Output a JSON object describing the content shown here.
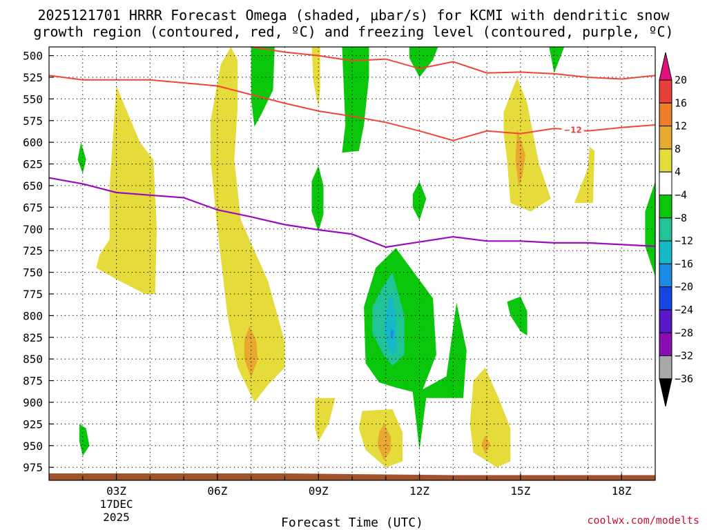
{
  "chart_data": {
    "type": "time-height",
    "title_line1": "2025121701 HRRR Forecast Omega (shaded, μbar/s) for KCMI with dendritic snow",
    "title_line2": "growth region (contoured, red, ºC) and freezing level (contoured, purple, ºC)",
    "xlabel": "Forecast Time (UTC)",
    "credit": "coolwx.com/modelts",
    "x_range": [
      1,
      19
    ],
    "y_range": [
      490,
      990
    ],
    "x_ticks": [
      {
        "h": 3,
        "label": "03Z",
        "sub1": "17DEC",
        "sub2": "2025"
      },
      {
        "h": 6,
        "label": "06Z"
      },
      {
        "h": 9,
        "label": "09Z"
      },
      {
        "h": 12,
        "label": "12Z"
      },
      {
        "h": 15,
        "label": "15Z"
      },
      {
        "h": 18,
        "label": "18Z"
      }
    ],
    "y_ticks": [
      500,
      525,
      550,
      575,
      600,
      625,
      650,
      675,
      700,
      725,
      750,
      775,
      800,
      825,
      850,
      875,
      900,
      925,
      950,
      975
    ],
    "colorbar": {
      "labels": [
        "20",
        "16",
        "12",
        "8",
        "4",
        "−4",
        "−8",
        "−12",
        "−16",
        "−20",
        "−24",
        "−28",
        "−32",
        "−36"
      ],
      "colors": [
        "#e8403a",
        "#ef7e2a",
        "#e7a930",
        "#e5db3b",
        "#ffffff",
        "#0bc70b",
        "#23c398",
        "#16b7c7",
        "#1c8be6",
        "#1646e1",
        "#5b18c8",
        "#8b0bb7",
        "#a8a8a8"
      ],
      "top_arrow": "#e3117f",
      "bottom_arrow": "#000000"
    },
    "shading_colors": {
      "yellow": "#e5db3b",
      "orange": "#e7a930",
      "green": "#0bc70b",
      "teal": "#23c398",
      "cyan": "#16b7c7",
      "blue": "#1c8be6"
    },
    "dgz_color": "#f04438",
    "freezing_color": "#9a0bc0",
    "ground_color": "#a0522d",
    "dgz_top": [
      [
        1,
        523
      ],
      [
        2,
        528
      ],
      [
        4,
        528
      ],
      [
        6,
        535
      ],
      [
        7,
        545
      ],
      [
        8,
        555
      ],
      [
        9,
        564
      ],
      [
        10,
        570
      ],
      [
        11,
        577
      ],
      [
        12,
        587
      ],
      [
        13,
        598
      ],
      [
        14,
        587
      ],
      [
        15,
        590
      ],
      [
        16,
        584
      ],
      [
        17,
        587
      ],
      [
        18,
        583
      ],
      [
        19,
        580
      ]
    ],
    "dgz_bottom": [
      [
        7,
        490
      ],
      [
        8,
        496
      ],
      [
        9,
        500
      ],
      [
        10,
        506
      ],
      [
        11,
        504
      ],
      [
        12,
        515
      ],
      [
        13,
        507
      ],
      [
        14,
        520
      ],
      [
        15,
        519
      ],
      [
        16,
        521
      ],
      [
        17,
        525
      ],
      [
        18,
        527
      ],
      [
        19,
        523
      ]
    ],
    "dgz_label": {
      "text": "−12",
      "x": 16.55,
      "p": 586
    },
    "freezing_line": [
      [
        1,
        641
      ],
      [
        2,
        648
      ],
      [
        3,
        658
      ],
      [
        4,
        661
      ],
      [
        5,
        664
      ],
      [
        6,
        678
      ],
      [
        7,
        686
      ],
      [
        8,
        695
      ],
      [
        9,
        701
      ],
      [
        10,
        706
      ],
      [
        11,
        721
      ],
      [
        12,
        715
      ],
      [
        13,
        709
      ],
      [
        14,
        714
      ],
      [
        15,
        714
      ],
      [
        16,
        716
      ],
      [
        17,
        716
      ],
      [
        18,
        718
      ],
      [
        19,
        720
      ]
    ],
    "omega_regions": [
      {
        "color": "yellow",
        "points": [
          [
            3.85,
            775
          ],
          [
            3.6,
            770
          ],
          [
            3.1,
            760
          ],
          [
            2.4,
            745
          ],
          [
            2.5,
            730
          ],
          [
            2.8,
            712
          ],
          [
            2.8,
            650
          ],
          [
            3,
            535
          ],
          [
            3.7,
            600
          ],
          [
            4.1,
            620
          ],
          [
            4.2,
            700
          ],
          [
            4.15,
            775
          ]
        ]
      },
      {
        "color": "yellow",
        "points": [
          [
            5.8,
            575
          ],
          [
            6.1,
            510
          ],
          [
            6.4,
            490
          ],
          [
            6.6,
            505
          ],
          [
            6.6,
            560
          ],
          [
            6.5,
            620
          ],
          [
            6.7,
            690
          ],
          [
            7.5,
            760
          ],
          [
            8,
            830
          ],
          [
            8,
            860
          ],
          [
            7.5,
            880
          ],
          [
            7.1,
            900
          ],
          [
            6.6,
            860
          ],
          [
            6.3,
            800
          ],
          [
            6,
            700
          ],
          [
            5.8,
            620
          ]
        ]
      },
      {
        "color": "orange",
        "points": [
          [
            6.95,
            812
          ],
          [
            7.15,
            828
          ],
          [
            7.2,
            850
          ],
          [
            7.0,
            872
          ],
          [
            6.8,
            850
          ],
          [
            6.8,
            828
          ]
        ]
      },
      {
        "color": "yellow",
        "points": [
          [
            8.8,
            490
          ],
          [
            9.05,
            490
          ],
          [
            9.05,
            540
          ],
          [
            9.0,
            560
          ],
          [
            8.85,
            530
          ]
        ]
      },
      {
        "color": "yellow",
        "points": [
          [
            8.9,
            895
          ],
          [
            9.5,
            895
          ],
          [
            9.3,
            925
          ],
          [
            9.0,
            945
          ],
          [
            8.9,
            930
          ]
        ]
      },
      {
        "color": "yellow",
        "points": [
          [
            10.3,
            910
          ],
          [
            11.2,
            908
          ],
          [
            11.5,
            935
          ],
          [
            11.5,
            968
          ],
          [
            11.0,
            975
          ],
          [
            10.4,
            955
          ],
          [
            10.2,
            930
          ]
        ]
      },
      {
        "color": "orange",
        "points": [
          [
            10.95,
            925
          ],
          [
            11.15,
            940
          ],
          [
            11.15,
            955
          ],
          [
            10.95,
            967
          ],
          [
            10.75,
            950
          ],
          [
            10.8,
            935
          ]
        ]
      },
      {
        "color": "yellow",
        "points": [
          [
            11.95,
            775
          ],
          [
            12.15,
            805
          ],
          [
            12.05,
            840
          ],
          [
            11.95,
            805
          ]
        ]
      },
      {
        "color": "yellow",
        "points": [
          [
            13.6,
            875
          ],
          [
            13.95,
            860
          ],
          [
            14.35,
            895
          ],
          [
            14.7,
            930
          ],
          [
            14.7,
            968
          ],
          [
            14.3,
            975
          ],
          [
            13.6,
            958
          ],
          [
            13.5,
            925
          ]
        ]
      },
      {
        "color": "orange",
        "points": [
          [
            13.95,
            938
          ],
          [
            14.1,
            948
          ],
          [
            13.95,
            960
          ],
          [
            13.85,
            948
          ]
        ]
      },
      {
        "color": "yellow",
        "points": [
          [
            14.5,
            565
          ],
          [
            14.9,
            525
          ],
          [
            15.2,
            555
          ],
          [
            15.55,
            625
          ],
          [
            15.9,
            665
          ],
          [
            15.3,
            680
          ],
          [
            14.7,
            670
          ],
          [
            14.6,
            620
          ],
          [
            14.5,
            590
          ]
        ]
      },
      {
        "color": "orange",
        "points": [
          [
            14.9,
            585
          ],
          [
            15.15,
            615
          ],
          [
            15.05,
            640
          ],
          [
            14.95,
            652
          ],
          [
            14.85,
            620
          ]
        ]
      },
      {
        "color": "yellow",
        "points": [
          [
            17.05,
            605
          ],
          [
            17.2,
            610
          ],
          [
            17.15,
            670
          ],
          [
            16.6,
            670
          ],
          [
            17.0,
            630
          ]
        ]
      },
      {
        "color": "green",
        "points": [
          [
            7.0,
            490
          ],
          [
            7.7,
            490
          ],
          [
            7.65,
            540
          ],
          [
            7.3,
            568
          ],
          [
            7.1,
            582
          ],
          [
            7.0,
            550
          ]
        ]
      },
      {
        "color": "green",
        "points": [
          [
            9.7,
            490
          ],
          [
            10.5,
            490
          ],
          [
            10.5,
            525
          ],
          [
            10.35,
            580
          ],
          [
            10.2,
            610
          ],
          [
            9.7,
            612
          ],
          [
            9.8,
            580
          ]
        ]
      },
      {
        "color": "green",
        "points": [
          [
            8.8,
            645
          ],
          [
            9.0,
            627
          ],
          [
            9.15,
            650
          ],
          [
            9.15,
            683
          ],
          [
            9.0,
            703
          ],
          [
            8.8,
            680
          ]
        ]
      },
      {
        "color": "green",
        "points": [
          [
            11.7,
            490
          ],
          [
            12.55,
            490
          ],
          [
            12.4,
            505
          ],
          [
            12.0,
            525
          ],
          [
            11.7,
            503
          ]
        ]
      },
      {
        "color": "green",
        "points": [
          [
            11.8,
            660
          ],
          [
            12.0,
            645
          ],
          [
            12.2,
            665
          ],
          [
            12.0,
            690
          ],
          [
            11.8,
            675
          ]
        ]
      },
      {
        "color": "green",
        "points": [
          [
            15.85,
            490
          ],
          [
            16.3,
            490
          ],
          [
            16.0,
            520
          ]
        ]
      },
      {
        "color": "green",
        "points": [
          [
            1.95,
            600
          ],
          [
            2.1,
            620
          ],
          [
            2.0,
            636
          ],
          [
            1.85,
            620
          ]
        ]
      },
      {
        "color": "green",
        "points": [
          [
            1.9,
            925
          ],
          [
            2.1,
            930
          ],
          [
            2.2,
            950
          ],
          [
            2.0,
            962
          ],
          [
            1.9,
            945
          ]
        ]
      },
      {
        "color": "green",
        "points": [
          [
            14.6,
            784
          ],
          [
            15.0,
            778
          ],
          [
            15.2,
            795
          ],
          [
            15.2,
            823
          ],
          [
            15.0,
            818
          ],
          [
            14.7,
            800
          ]
        ]
      },
      {
        "color": "green",
        "points": [
          [
            19.0,
            645
          ],
          [
            19.0,
            755
          ],
          [
            18.7,
            720
          ],
          [
            18.7,
            680
          ]
        ]
      },
      {
        "color": "green",
        "points": [
          [
            11.3,
            722
          ],
          [
            12.4,
            780
          ],
          [
            12.5,
            845
          ],
          [
            12.1,
            885
          ],
          [
            12.8,
            870
          ],
          [
            13.1,
            785
          ],
          [
            13.4,
            840
          ],
          [
            13.3,
            895
          ],
          [
            12.2,
            895
          ],
          [
            12.0,
            955
          ],
          [
            11.8,
            888
          ],
          [
            11.3,
            883
          ],
          [
            10.8,
            877
          ],
          [
            10.4,
            855
          ],
          [
            10.35,
            790
          ],
          [
            10.7,
            745
          ]
        ]
      },
      {
        "color": "teal",
        "points": [
          [
            10.9,
            768
          ],
          [
            11.2,
            750
          ],
          [
            11.55,
            800
          ],
          [
            11.55,
            845
          ],
          [
            11.2,
            858
          ],
          [
            10.9,
            843
          ],
          [
            10.6,
            820
          ],
          [
            10.6,
            790
          ]
        ]
      },
      {
        "color": "cyan",
        "points": [
          [
            11.08,
            782
          ],
          [
            11.2,
            775
          ],
          [
            11.3,
            800
          ],
          [
            11.3,
            840
          ],
          [
            11.2,
            846
          ],
          [
            11.08,
            838
          ],
          [
            10.95,
            815
          ]
        ]
      },
      {
        "color": "blue",
        "points": [
          [
            11.16,
            815
          ],
          [
            11.24,
            818
          ],
          [
            11.2,
            828
          ],
          [
            11.14,
            824
          ]
        ]
      }
    ]
  }
}
